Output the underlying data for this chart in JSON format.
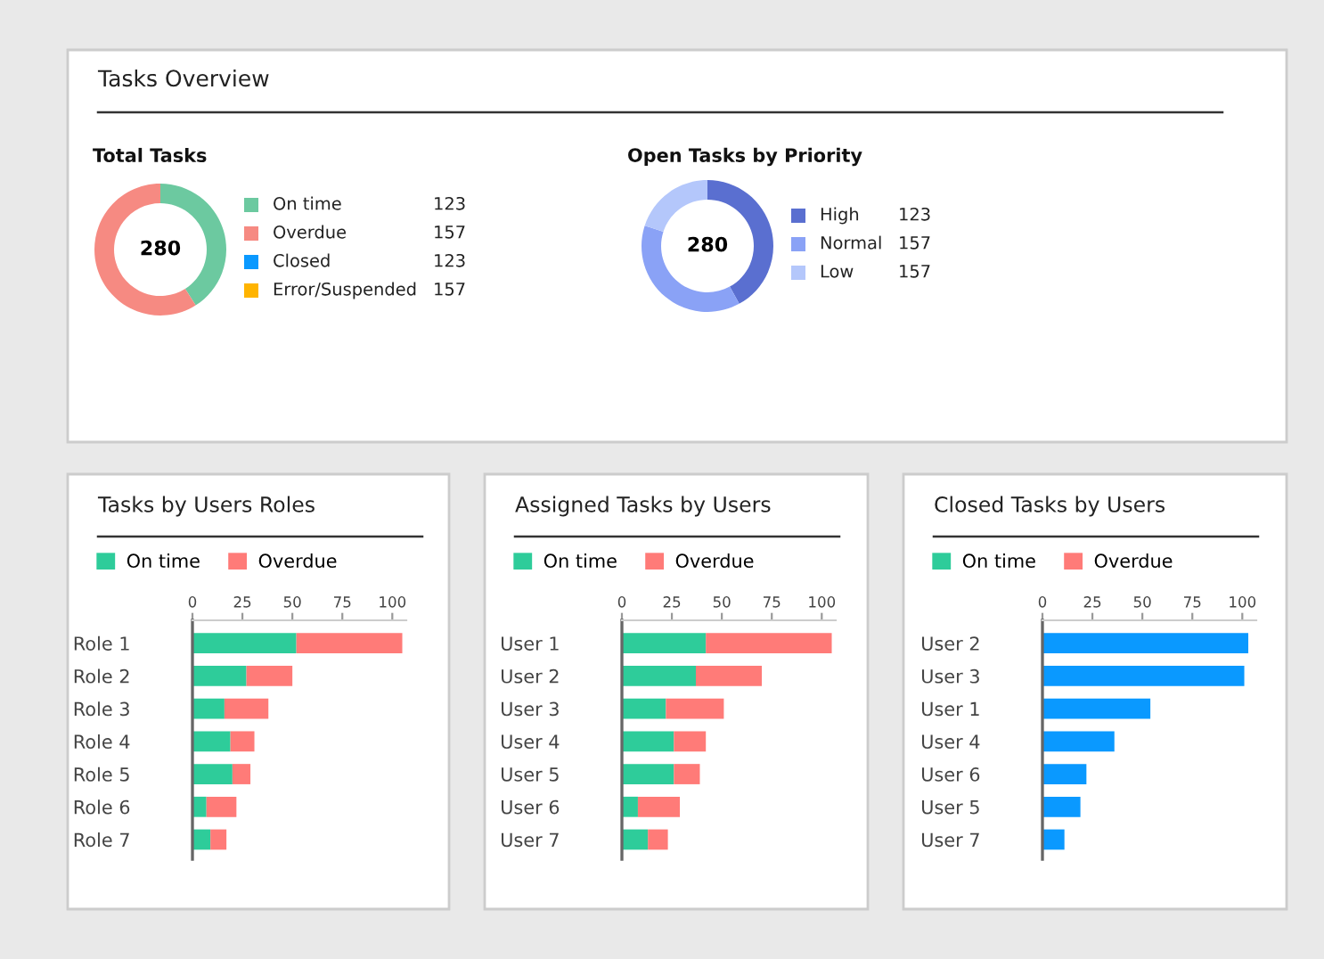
{
  "chart_data": [
    {
      "type": "other",
      "title": "Tasks Overview"
    },
    {
      "type": "donut",
      "title": "Total Tasks",
      "categories": [
        "On time",
        "Overdue",
        "Closed",
        "Error/Suspended"
      ],
      "values": [
        41,
        59,
        0,
        0
      ],
      "colors": [
        "#6cc9a0",
        "#f68a82",
        "#0a99ff",
        "#ffb400"
      ],
      "legend": "right",
      "annotations": [
        "280",
        "123",
        "157",
        "123",
        "157"
      ]
    },
    {
      "type": "donut",
      "title": "Open Tasks by Priority",
      "categories": [
        "High",
        "Normal",
        "Low"
      ],
      "values": [
        42,
        38,
        20
      ],
      "colors": [
        "#5a6fd0",
        "#8aa2f6",
        "#b4c7fb"
      ],
      "legend": "right",
      "annotations": [
        "280",
        "123",
        "157",
        "157"
      ]
    },
    {
      "type": "bar",
      "title": "Tasks by Users Roles",
      "orientation": "horizontal",
      "stacked": true,
      "categories": [
        "Role 1",
        "Role 2",
        "Role 3",
        "Role 4",
        "Role 5",
        "Role 6",
        "Role 7"
      ],
      "xlim": [
        0,
        107
      ],
      "xticks": [
        0,
        25,
        50,
        75,
        100
      ],
      "legend": "top left",
      "series": [
        {
          "name": "On time",
          "color": "#2ecc9a",
          "values": [
            52,
            27,
            16,
            19,
            20,
            7,
            9
          ]
        },
        {
          "name": "Overdue",
          "color": "#ff7b78",
          "values": [
            53,
            23,
            22,
            12,
            9,
            15,
            8
          ]
        }
      ]
    },
    {
      "type": "bar",
      "title": "Assigned Tasks by Users",
      "orientation": "horizontal",
      "stacked": true,
      "categories": [
        "User 1",
        "User 2",
        "User 3",
        "User 4",
        "User 5",
        "User 6",
        "User 7"
      ],
      "xlim": [
        0,
        107
      ],
      "xticks": [
        0,
        25,
        50,
        75,
        100
      ],
      "legend": "top left",
      "series": [
        {
          "name": "On time",
          "color": "#2ecc9a",
          "values": [
            42,
            37,
            22,
            26,
            26,
            8,
            13
          ]
        },
        {
          "name": "Overdue",
          "color": "#ff7b78",
          "values": [
            63,
            33,
            29,
            16,
            13,
            21,
            10
          ]
        }
      ]
    },
    {
      "type": "bar",
      "title": "Closed Tasks by Users",
      "orientation": "horizontal",
      "stacked": true,
      "categories": [
        "User 2",
        "User 3",
        "User 1",
        "User 4",
        "User 6",
        "User 5",
        "User 7"
      ],
      "xlim": [
        0,
        107
      ],
      "xticks": [
        0,
        25,
        50,
        75,
        100
      ],
      "legend": "top left",
      "series": [
        {
          "name": "On time",
          "color": "#2ecc9a",
          "values": [
            null,
            null,
            null,
            null,
            null,
            null,
            null
          ]
        },
        {
          "name": "Overdue",
          "color": "#ff7b78",
          "values": [
            null,
            null,
            null,
            null,
            null,
            null,
            null
          ]
        },
        {
          "color": "#0a99ff",
          "values": [
            103,
            101,
            54,
            36,
            22,
            19,
            11
          ]
        }
      ]
    }
  ]
}
